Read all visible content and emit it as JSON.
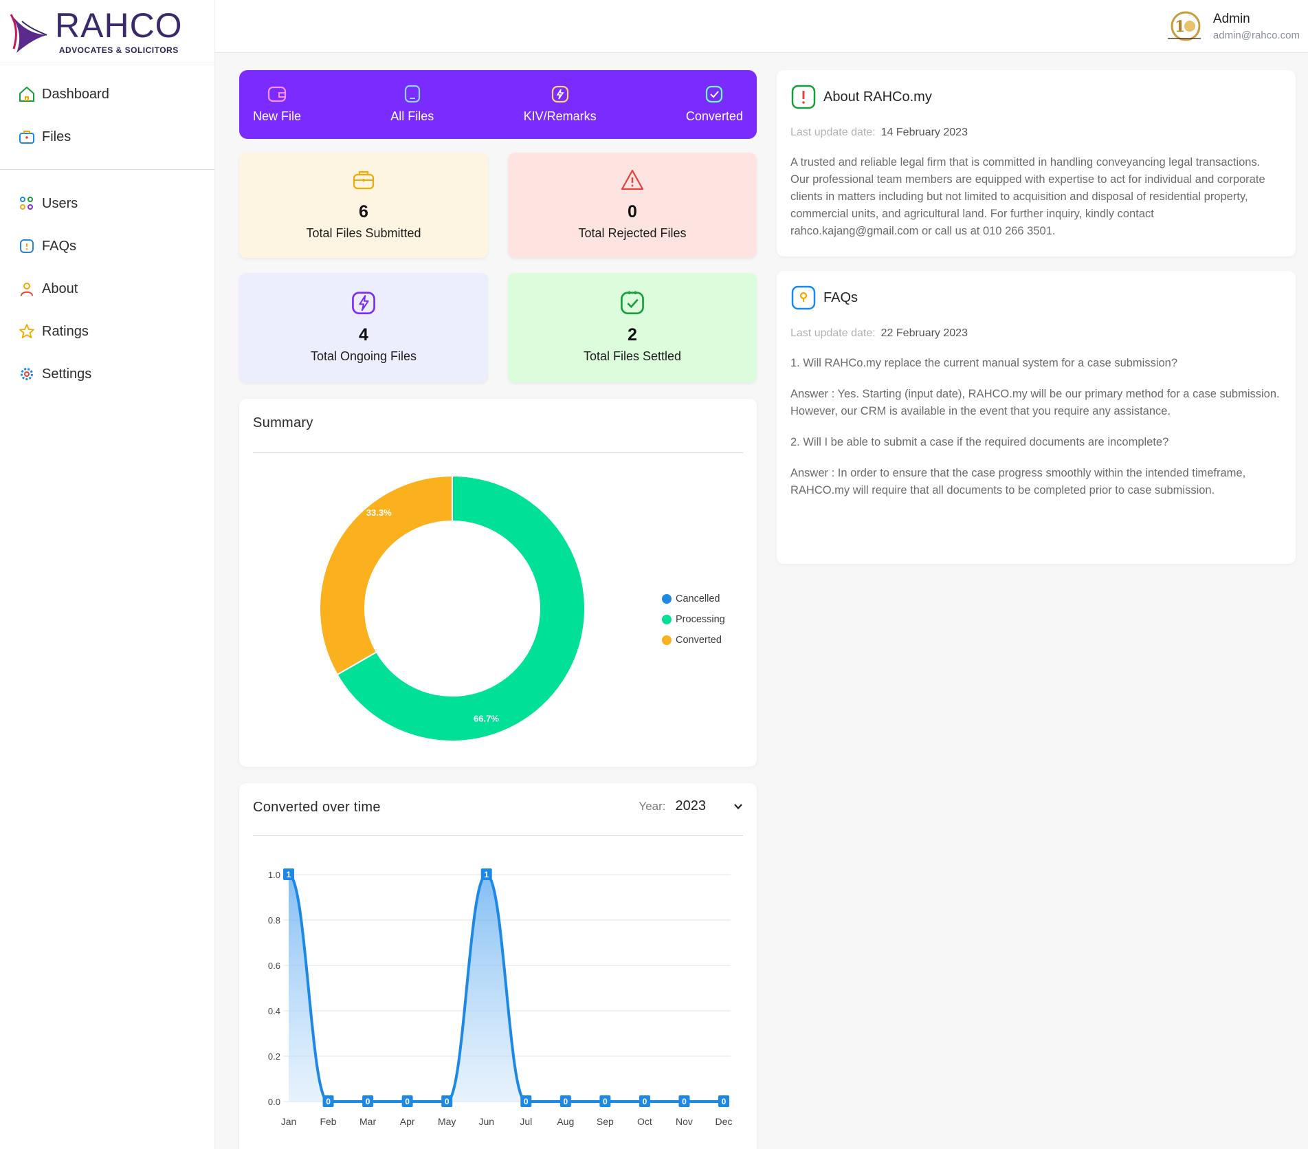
{
  "brand": {
    "name": "RAHCO",
    "tagline": "ADVOCATES & SOLICITORS",
    "badge_text": "10 YEARS"
  },
  "sidebar": {
    "top_items": [
      {
        "label": "Dashboard",
        "icon": "home-icon"
      },
      {
        "label": "Files",
        "icon": "briefcase-icon"
      }
    ],
    "bottom_items": [
      {
        "label": "Users",
        "icon": "users-icon"
      },
      {
        "label": "FAQs",
        "icon": "faq-icon"
      },
      {
        "label": "About",
        "icon": "person-icon"
      },
      {
        "label": "Ratings",
        "icon": "star-icon"
      },
      {
        "label": "Settings",
        "icon": "gear-icon"
      }
    ]
  },
  "header": {
    "user_name": "Admin",
    "user_email": "admin@rahco.com"
  },
  "actions": [
    {
      "label": "New File",
      "icon": "wallet-icon"
    },
    {
      "label": "All Files",
      "icon": "tablet-icon"
    },
    {
      "label": "KIV/Remarks",
      "icon": "lightning-icon"
    },
    {
      "label": "Converted",
      "icon": "clipboard-check-icon"
    }
  ],
  "stats": [
    {
      "value": "6",
      "label": "Total Files Submitted",
      "bg": "#fdf5e1",
      "color": "#f2a900"
    },
    {
      "value": "0",
      "label": "Total Rejected Files",
      "bg": "#fde4e1",
      "color": "#e8413b"
    },
    {
      "value": "4",
      "label": "Total Ongoing Files",
      "bg": "#ecedfd",
      "color": "#7a2cff"
    },
    {
      "value": "2",
      "label": "Total Files Settled",
      "bg": "#dcfddb",
      "color": "#1a9b3c"
    }
  ],
  "summary": {
    "title": "Summary",
    "chart_data": {
      "type": "pie",
      "labels": [
        "Cancelled",
        "Processing",
        "Converted"
      ],
      "values": [
        0,
        66.7,
        33.3
      ],
      "value_labels": [
        "",
        "66.7%",
        "33.3%"
      ],
      "colors": [
        "#1e88e5",
        "#00e096",
        "#fbb01d"
      ],
      "donut": true,
      "legend": "right"
    }
  },
  "converted": {
    "title": "Converted over time",
    "year_label": "Year:",
    "year_value": "2023",
    "chart_data": {
      "type": "area",
      "categories": [
        "Jan",
        "Feb",
        "Mar",
        "Apr",
        "May",
        "Jun",
        "Jul",
        "Aug",
        "Sep",
        "Oct",
        "Nov",
        "Dec"
      ],
      "series": [
        {
          "values": [
            1,
            0,
            0,
            0,
            0,
            1,
            0,
            0,
            0,
            0,
            0,
            0
          ]
        }
      ],
      "ylim": [
        0,
        1.0
      ],
      "yticks": [
        "0.0",
        "0.2",
        "0.4",
        "0.6",
        "0.8",
        "1.0"
      ],
      "data_labels": [
        "1",
        "0",
        "0",
        "0",
        "0",
        "1",
        "0",
        "0",
        "0",
        "0",
        "0",
        "0"
      ],
      "grid": true,
      "color": "#1e88e5"
    }
  },
  "about": {
    "title": "About RAHCo.my",
    "date_label": "Last update date:",
    "date_value": "14 February 2023",
    "body": "A trusted and reliable legal firm that is committed in handling conveyancing legal transactions. Our professional team members are equipped with expertise to act for individual and corporate clients in matters including but not limited to acquisition and disposal of residential property, commercial units, and agricultural land. For further inquiry, kindly contact rahco.kajang@gmail.com or call us at 010 266 3501."
  },
  "faqs": {
    "title": "FAQs",
    "date_label": "Last update date:",
    "date_value": "22 February 2023",
    "paragraphs": [
      "1. Will RAHCo.my replace the current manual system for a case submission?",
      "Answer : Yes. Starting (input date), RAHCO.my will be our primary method for a case submission. However, our CRM is available in the event that you require any assistance.",
      "2. Will I be able to submit a case if the required documents are incomplete?",
      "Answer : In order to ensure that the case progress smoothly within the intended timeframe, RAHCO.my will require that all documents to be completed prior to case submission."
    ]
  }
}
